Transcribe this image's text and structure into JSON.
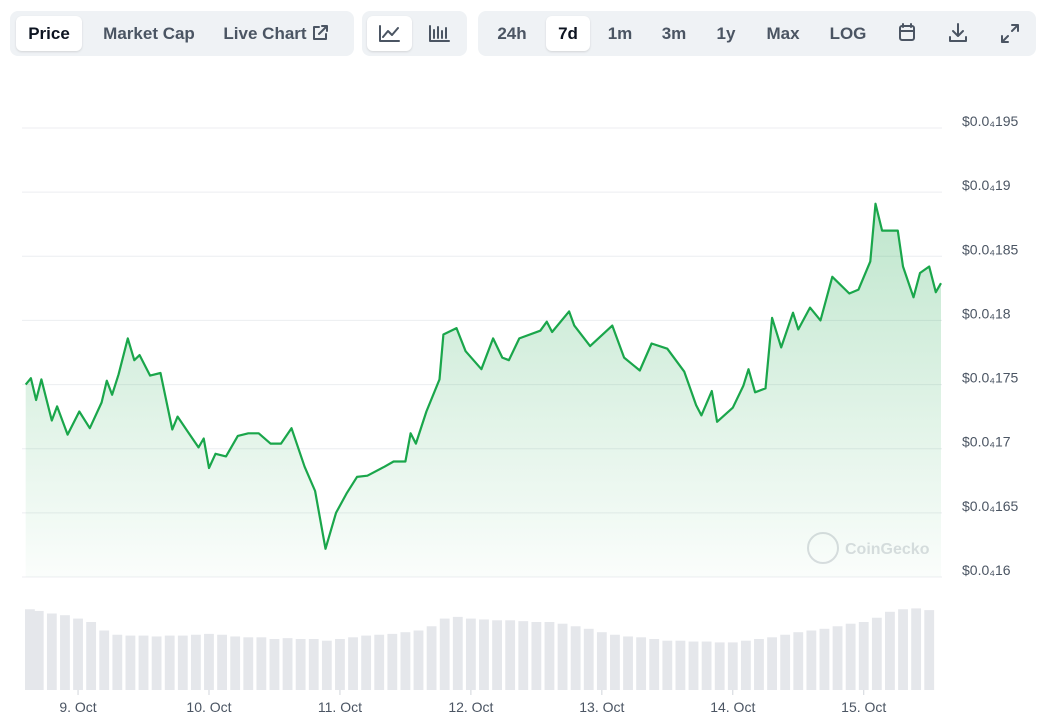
{
  "toolbar": {
    "views": [
      "Price",
      "Market Cap",
      "Live Chart"
    ],
    "ranges": [
      "24h",
      "7d",
      "1m",
      "3m",
      "1y",
      "Max",
      "LOG"
    ]
  },
  "watermark": "CoinGecko",
  "chart_data": [
    {
      "type": "line",
      "color": "#1aa64b",
      "grid": true,
      "x": [
        8.6,
        8.64,
        8.68,
        8.72,
        8.8,
        8.84,
        8.92,
        9.01,
        9.09,
        9.18,
        9.22,
        9.26,
        9.31,
        9.38,
        9.43,
        9.47,
        9.55,
        9.63,
        9.72,
        9.76,
        9.84,
        9.92,
        9.96,
        10.0,
        10.05,
        10.13,
        10.22,
        10.3,
        10.38,
        10.47,
        10.55,
        10.63,
        10.73,
        10.81,
        10.89,
        10.97,
        11.05,
        11.13,
        11.21,
        11.34,
        11.41,
        11.5,
        11.54,
        11.58,
        11.66,
        11.76,
        11.79,
        11.89,
        11.96,
        12.08,
        12.17,
        12.24,
        12.29,
        12.37,
        12.53,
        12.58,
        12.62,
        12.75,
        12.79,
        12.91,
        13.08,
        13.17,
        13.29,
        13.38,
        13.5,
        13.63,
        13.72,
        13.76,
        13.84,
        13.88,
        14.0,
        14.08,
        14.12,
        14.17,
        14.25,
        14.3,
        14.37,
        14.46,
        14.5,
        14.59,
        14.67,
        14.76,
        14.89,
        14.96,
        15.05,
        15.09,
        15.14,
        15.26,
        15.3,
        15.38,
        15.43,
        15.5,
        15.55,
        15.59
      ],
      "values": [
        1.75e-05,
        1.755e-05,
        1.738e-05,
        1.754e-05,
        1.722e-05,
        1.733e-05,
        1.711e-05,
        1.729e-05,
        1.716e-05,
        1.736e-05,
        1.753e-05,
        1.742e-05,
        1.758e-05,
        1.786e-05,
        1.769e-05,
        1.773e-05,
        1.757e-05,
        1.759e-05,
        1.715e-05,
        1.725e-05,
        1.713e-05,
        1.701e-05,
        1.708e-05,
        1.685e-05,
        1.696e-05,
        1.694e-05,
        1.71e-05,
        1.712e-05,
        1.712e-05,
        1.704e-05,
        1.704e-05,
        1.716e-05,
        1.686e-05,
        1.667e-05,
        1.622e-05,
        1.65e-05,
        1.665e-05,
        1.678e-05,
        1.679e-05,
        1.686e-05,
        1.69e-05,
        1.69e-05,
        1.712e-05,
        1.704e-05,
        1.729e-05,
        1.754e-05,
        1.789e-05,
        1.794e-05,
        1.776e-05,
        1.762e-05,
        1.786e-05,
        1.771e-05,
        1.769e-05,
        1.786e-05,
        1.792e-05,
        1.799e-05,
        1.791e-05,
        1.807e-05,
        1.796e-05,
        1.78e-05,
        1.796e-05,
        1.771e-05,
        1.761e-05,
        1.782e-05,
        1.778e-05,
        1.76e-05,
        1.734e-05,
        1.726e-05,
        1.745e-05,
        1.721e-05,
        1.732e-05,
        1.749e-05,
        1.762e-05,
        1.744e-05,
        1.747e-05,
        1.802e-05,
        1.779e-05,
        1.806e-05,
        1.793e-05,
        1.81e-05,
        1.8e-05,
        1.834e-05,
        1.821e-05,
        1.824e-05,
        1.846e-05,
        1.891e-05,
        1.87e-05,
        1.87e-05,
        1.842e-05,
        1.818e-05,
        1.837e-05,
        1.842e-05,
        1.822e-05,
        1.829e-05
      ],
      "xlim": [
        8.595,
        15.59
      ],
      "xticks": [
        {
          "value": 9,
          "label": "9. Oct"
        },
        {
          "value": 10,
          "label": "10. Oct"
        },
        {
          "value": 11,
          "label": "11. Oct"
        },
        {
          "value": 12,
          "label": "12. Oct"
        },
        {
          "value": 13,
          "label": "13. Oct"
        },
        {
          "value": 14,
          "label": "14. Oct"
        },
        {
          "value": 15,
          "label": "15. Oct"
        }
      ],
      "ylim": [
        1.6e-05,
        1.95e-05
      ],
      "yticks": [
        {
          "value": 1.6e-05,
          "label": "$0.0₄16"
        },
        {
          "value": 1.65e-05,
          "label": "$0.0₄165"
        },
        {
          "value": 1.7e-05,
          "label": "$0.0₄17"
        },
        {
          "value": 1.75e-05,
          "label": "$0.0₄175"
        },
        {
          "value": 1.8e-05,
          "label": "$0.0₄18"
        },
        {
          "value": 1.85e-05,
          "label": "$0.0₄185"
        },
        {
          "value": 1.9e-05,
          "label": "$0.0₄19"
        },
        {
          "value": 1.95e-05,
          "label": "$0.0₄195"
        }
      ]
    },
    {
      "type": "bar",
      "color": "#e5e7eb",
      "x": [
        8.6,
        8.7,
        8.8,
        8.9,
        9.0,
        9.1,
        9.2,
        9.3,
        9.4,
        9.5,
        9.6,
        9.7,
        9.8,
        9.9,
        10.0,
        10.1,
        10.2,
        10.3,
        10.4,
        10.5,
        10.6,
        10.7,
        10.8,
        10.9,
        11.0,
        11.1,
        11.2,
        11.3,
        11.4,
        11.5,
        11.6,
        11.7,
        11.8,
        11.9,
        12.0,
        12.1,
        12.2,
        12.3,
        12.4,
        12.5,
        12.6,
        12.7,
        12.8,
        12.9,
        13.0,
        13.1,
        13.2,
        13.3,
        13.4,
        13.5,
        13.6,
        13.7,
        13.8,
        13.9,
        14.0,
        14.1,
        14.2,
        14.3,
        14.4,
        14.5,
        14.6,
        14.7,
        14.8,
        14.9,
        15.0,
        15.1,
        15.2,
        15.3,
        15.4,
        15.5
      ],
      "values": [
        95,
        93,
        90,
        88,
        84,
        80,
        70,
        65,
        64,
        64,
        63,
        64,
        64,
        65,
        66,
        65,
        63,
        62,
        62,
        60,
        61,
        60,
        60,
        58,
        60,
        62,
        64,
        65,
        66,
        68,
        70,
        75,
        84,
        86,
        84,
        83,
        82,
        82,
        81,
        80,
        80,
        78,
        75,
        72,
        68,
        65,
        63,
        62,
        60,
        58,
        58,
        57,
        57,
        56,
        56,
        58,
        60,
        62,
        65,
        68,
        70,
        72,
        75,
        78,
        80,
        85,
        92,
        95,
        96,
        94
      ],
      "xlim": [
        8.595,
        15.59
      ],
      "ylim": [
        0,
        100
      ]
    }
  ]
}
